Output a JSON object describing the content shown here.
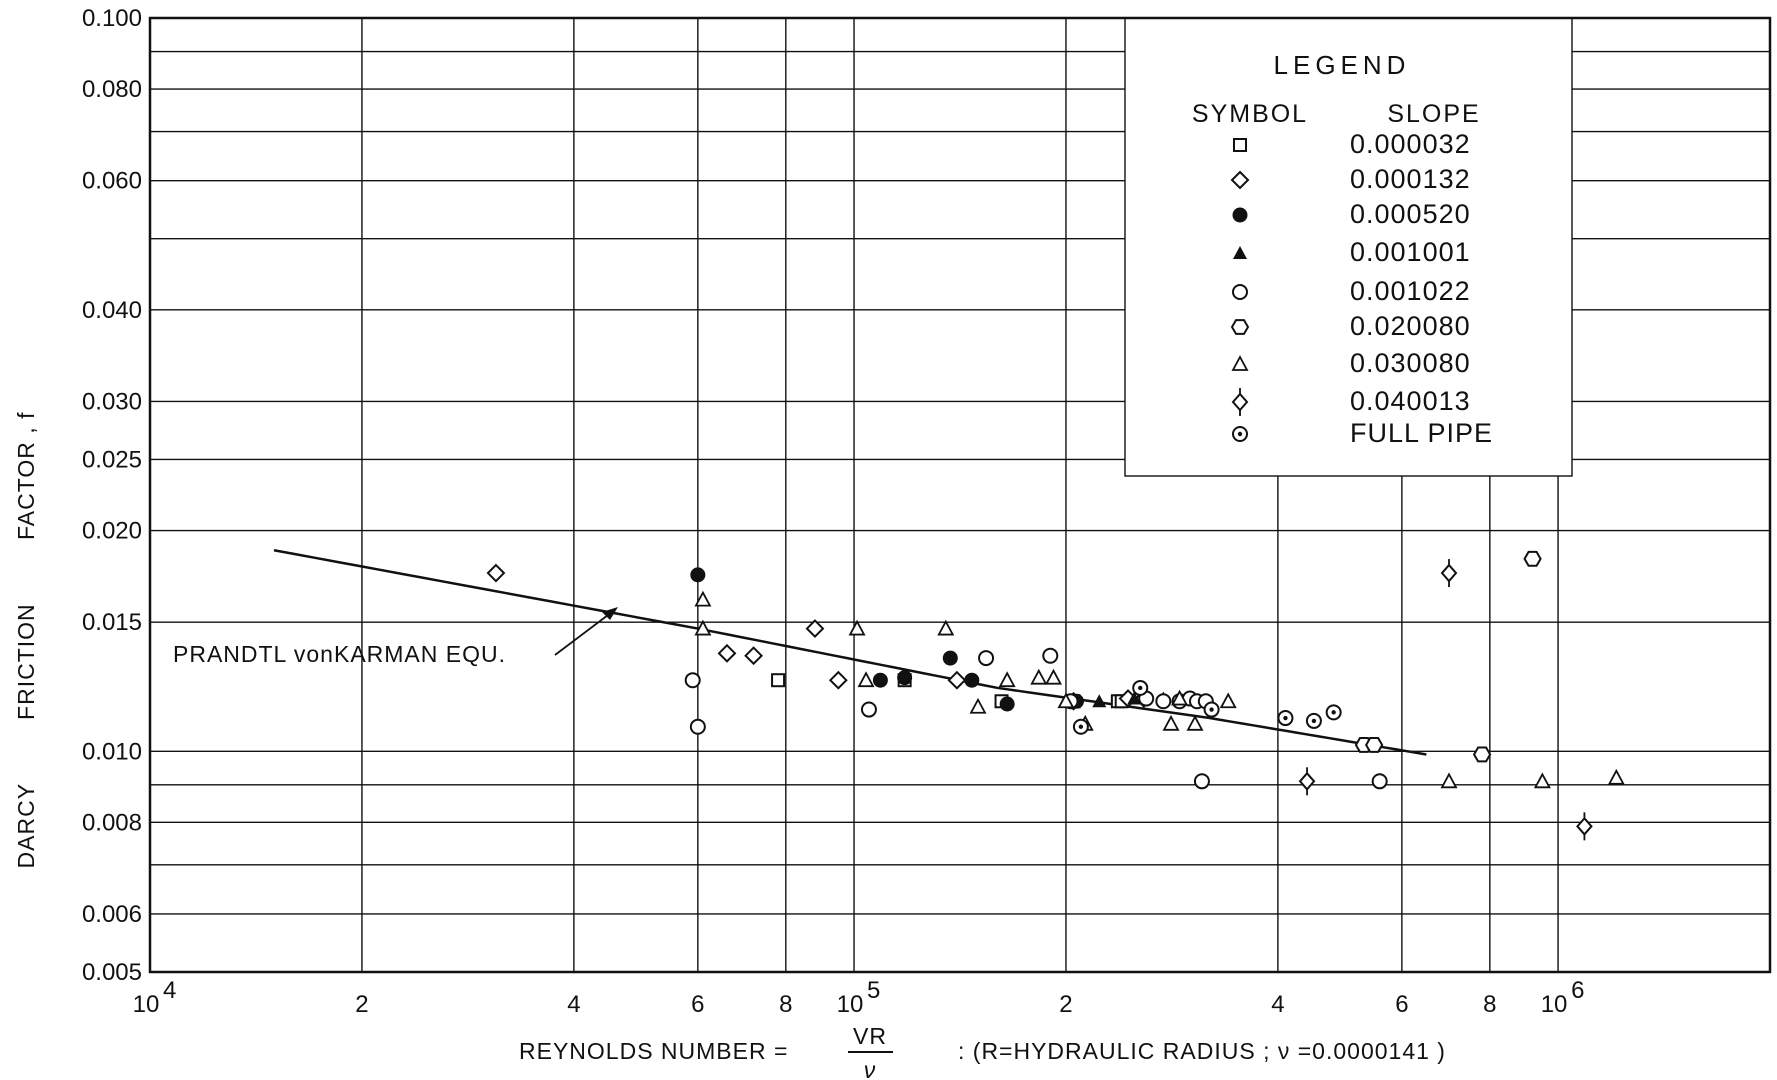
{
  "chart_data": {
    "type": "scatter",
    "x_scale": "log",
    "y_scale": "log",
    "xlim": [
      10000,
      2000000
    ],
    "ylim": [
      0.005,
      0.1
    ],
    "grid": true,
    "xlabel_parts": {
      "left": "REYNOLDS NUMBER =",
      "fraction_top": "VR",
      "fraction_bottom": "ν",
      "right": ": (R=HYDRAULIC RADIUS ; ν =0.0000141 )"
    },
    "ylabel_words": [
      "DARCY",
      "FRICTION",
      "FACTOR , f"
    ],
    "x_ticks": [
      {
        "value": 10000,
        "base": "10",
        "exp": "4"
      },
      {
        "value": 20000,
        "label": "2"
      },
      {
        "value": 40000,
        "label": "4"
      },
      {
        "value": 60000,
        "label": "6"
      },
      {
        "value": 80000,
        "label": "8"
      },
      {
        "value": 100000,
        "base": "10",
        "exp": "5"
      },
      {
        "value": 200000,
        "label": "2"
      },
      {
        "value": 400000,
        "label": "4"
      },
      {
        "value": 600000,
        "label": "6"
      },
      {
        "value": 800000,
        "label": "8"
      },
      {
        "value": 1000000,
        "base": "10",
        "exp": "6"
      }
    ],
    "y_ticks": [
      {
        "value": 0.1,
        "label": "0.100"
      },
      {
        "value": 0.08,
        "label": "0.080"
      },
      {
        "value": 0.06,
        "label": "0.060"
      },
      {
        "value": 0.04,
        "label": "0.040"
      },
      {
        "value": 0.03,
        "label": "0.030"
      },
      {
        "value": 0.025,
        "label": "0.025"
      },
      {
        "value": 0.02,
        "label": "0.020"
      },
      {
        "value": 0.015,
        "label": "0.015"
      },
      {
        "value": 0.01,
        "label": "0.010"
      },
      {
        "value": 0.008,
        "label": "0.008"
      },
      {
        "value": 0.006,
        "label": "0.006"
      },
      {
        "value": 0.005,
        "label": "0.005"
      }
    ],
    "legend": {
      "title": "LEGEND",
      "header_symbol": "SYMBOL",
      "header_slope": "SLOPE",
      "placement": "top-right"
    },
    "curve": {
      "label": "PRANDTL vonKARMAN EQU.",
      "points": [
        [
          15000,
          0.0188
        ],
        [
          60000,
          0.0147
        ],
        [
          160000,
          0.0122
        ],
        [
          320000,
          0.0111
        ],
        [
          650000,
          0.0099
        ]
      ]
    },
    "series": [
      {
        "name": "0.000032",
        "marker": "square-open",
        "points": [
          [
            78000,
            0.0125
          ],
          [
            118000,
            0.0125
          ],
          [
            162000,
            0.0117
          ],
          [
            205000,
            0.0117
          ],
          [
            237000,
            0.0117
          ],
          [
            240000,
            0.0117
          ]
        ]
      },
      {
        "name": "0.000132",
        "marker": "diamond-open",
        "points": [
          [
            31000,
            0.0175
          ],
          [
            66000,
            0.0136
          ],
          [
            72000,
            0.0135
          ],
          [
            88000,
            0.0147
          ],
          [
            95000,
            0.0125
          ],
          [
            140000,
            0.0125
          ],
          [
            205000,
            0.0117
          ],
          [
            245000,
            0.0118
          ],
          [
            258000,
            0.0118
          ]
        ]
      },
      {
        "name": "0.000520",
        "marker": "circle-filled",
        "points": [
          [
            60000,
            0.0174
          ],
          [
            109000,
            0.0125
          ],
          [
            118000,
            0.0126
          ],
          [
            137000,
            0.0134
          ],
          [
            147000,
            0.0125
          ],
          [
            165000,
            0.0116
          ],
          [
            207000,
            0.0117
          ]
        ]
      },
      {
        "name": "0.001001",
        "marker": "triangle-filled",
        "points": [
          [
            223000,
            0.0117
          ],
          [
            250000,
            0.0118
          ],
          [
            275000,
            0.0118
          ],
          [
            302000,
            0.0118
          ]
        ]
      },
      {
        "name": "0.001022",
        "marker": "circle-open",
        "points": [
          [
            59000,
            0.0125
          ],
          [
            60000,
            0.0108
          ],
          [
            105000,
            0.0114
          ],
          [
            154000,
            0.0134
          ],
          [
            190000,
            0.0135
          ],
          [
            203000,
            0.0117
          ],
          [
            260000,
            0.0118
          ],
          [
            275000,
            0.0117
          ],
          [
            290000,
            0.0117
          ],
          [
            300000,
            0.0118
          ],
          [
            307000,
            0.0117
          ],
          [
            316000,
            0.0117
          ],
          [
            312000,
            0.0091
          ],
          [
            558000,
            0.0091
          ]
        ]
      },
      {
        "name": "0.020080",
        "marker": "hexagon-open",
        "points": [
          [
            780000,
            0.0099
          ],
          [
            920000,
            0.0183
          ],
          [
            530000,
            0.0102
          ],
          [
            548000,
            0.0102
          ]
        ]
      },
      {
        "name": "0.030080",
        "marker": "triangle-open",
        "points": [
          [
            61000,
            0.0161
          ],
          [
            61000,
            0.0147
          ],
          [
            101000,
            0.0147
          ],
          [
            104000,
            0.0125
          ],
          [
            135000,
            0.0147
          ],
          [
            150000,
            0.0115
          ],
          [
            165000,
            0.0125
          ],
          [
            183000,
            0.0126
          ],
          [
            192000,
            0.0126
          ],
          [
            200000,
            0.0117
          ],
          [
            213000,
            0.0109
          ],
          [
            282000,
            0.0109
          ],
          [
            305000,
            0.0109
          ],
          [
            290000,
            0.0118
          ],
          [
            340000,
            0.0117
          ],
          [
            700000,
            0.0091
          ],
          [
            950000,
            0.0091
          ],
          [
            1210000,
            0.0092
          ]
        ]
      },
      {
        "name": "0.040013",
        "marker": "diamond-tick",
        "points": [
          [
            700000,
            0.0175
          ],
          [
            440000,
            0.0091
          ],
          [
            1090000,
            0.0079
          ]
        ]
      },
      {
        "name": "FULL PIPE",
        "marker": "circle-dot",
        "points": [
          [
            210000,
            0.0108
          ],
          [
            255000,
            0.0122
          ],
          [
            322000,
            0.0114
          ],
          [
            410000,
            0.0111
          ],
          [
            450000,
            0.011
          ],
          [
            480000,
            0.0113
          ]
        ]
      }
    ]
  }
}
